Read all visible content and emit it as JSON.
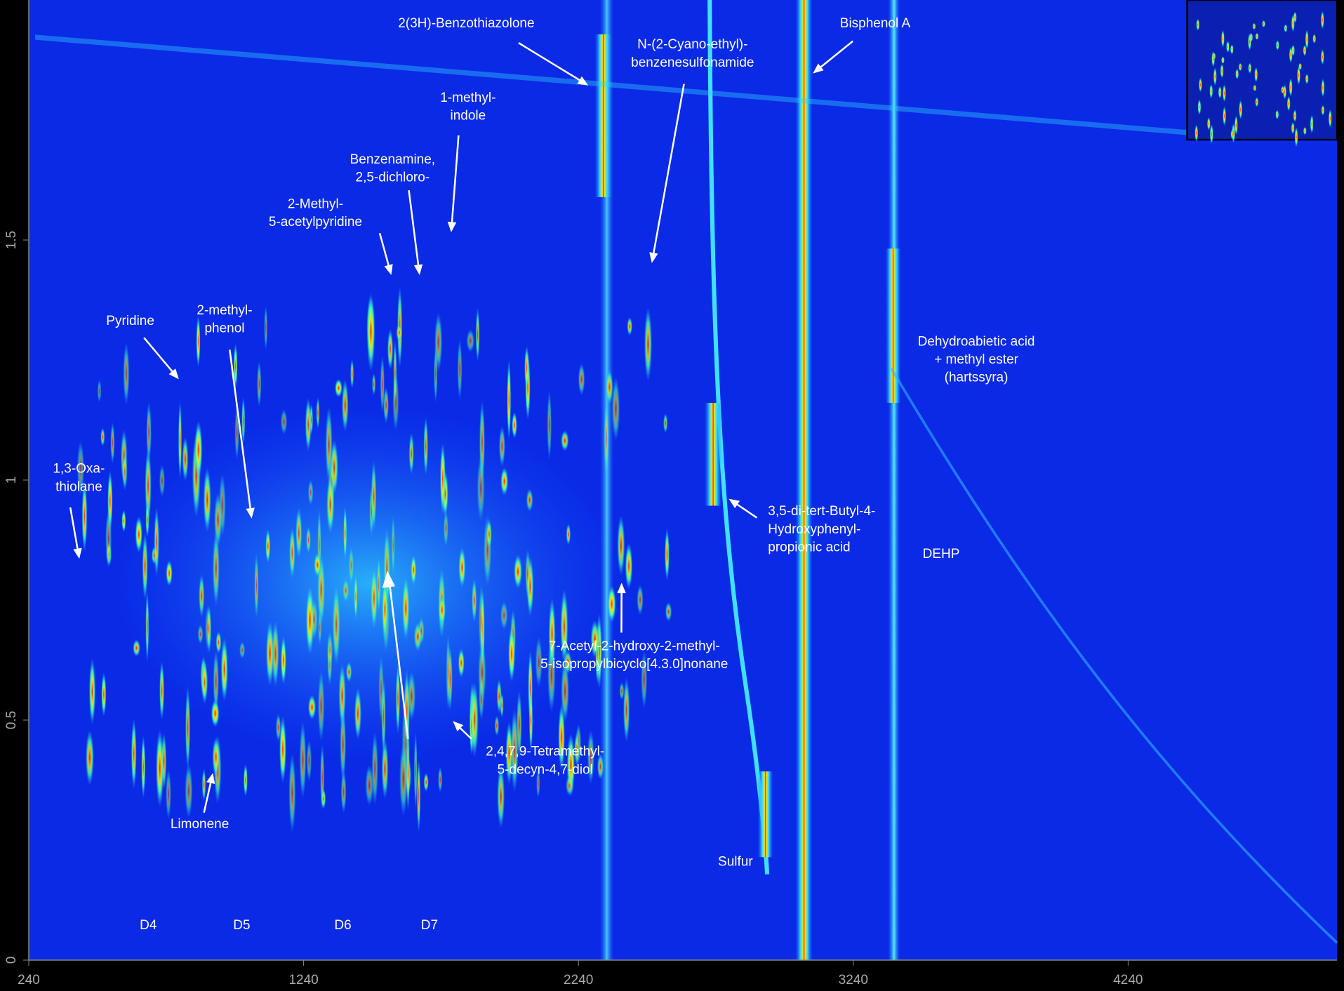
{
  "chart_data": {
    "type": "heatmap",
    "xlim": [
      240,
      5000
    ],
    "ylim": [
      0,
      2
    ],
    "xticks": [
      240,
      1240,
      2240,
      3240,
      4240
    ],
    "yticks": [
      0,
      0.5,
      1,
      1.5
    ],
    "annotations": [
      {
        "text": [
          "1,3-Oxa-",
          "thiolane"
        ],
        "x": 424,
        "y": 0.836
      },
      {
        "text": [
          "Pyridine"
        ],
        "x": 786,
        "y": 1.21
      },
      {
        "text": [
          "2-methyl-",
          "phenol"
        ],
        "x": 1051,
        "y": 0.92
      },
      {
        "text": [
          "Limonene"
        ],
        "x": 910,
        "y": 0.39
      },
      {
        "text": [
          "2-Methyl-",
          "5-acetylpyridine"
        ],
        "x": 1559,
        "y": 1.427
      },
      {
        "text": [
          "Benzenamine,",
          "2,5-dichloro-"
        ],
        "x": 1662,
        "y": 1.427
      },
      {
        "text": [
          "1-methyl-",
          "indole"
        ],
        "x": 1777,
        "y": 1.516
      },
      {
        "text": [
          "2(3H)-Benzothiazolone"
        ],
        "x": 2276,
        "y": 1.822
      },
      {
        "text": [
          "N-(2-Cyano-ethyl)-",
          "benzenesulfonamide"
        ],
        "x": 2507,
        "y": 1.452
      },
      {
        "text": [
          "Bisphenol A"
        ],
        "x": 3093,
        "y": 1.847
      },
      {
        "text": [
          "3,5-di-tert-Butyl-4-",
          "Hydroxyphenyl-",
          "propionic acid"
        ],
        "x": 2787,
        "y": 0.961
      },
      {
        "text": [
          "7-Acetyl-2-hydroxy-2-methyl-",
          "5-isopropylbicyclo[4.3.0]nonane"
        ],
        "x": 2397,
        "y": 0.786
      },
      {
        "text": [
          "2,4,7,9-Tetramethyl-",
          "5-decyn-4,7-diol"
        ],
        "x": 1783,
        "y": 0.498
      },
      {
        "text": [
          "Dehydroabietic acid",
          "+ methyl ester",
          "(hartssyra)"
        ]
      },
      {
        "text": [
          "DEHP"
        ]
      },
      {
        "text": [
          "Sulfur"
        ]
      },
      {
        "text": [
          "D4"
        ]
      },
      {
        "text": [
          "D5"
        ]
      },
      {
        "text": [
          "D6"
        ]
      },
      {
        "text": [
          "D7"
        ]
      }
    ]
  }
}
